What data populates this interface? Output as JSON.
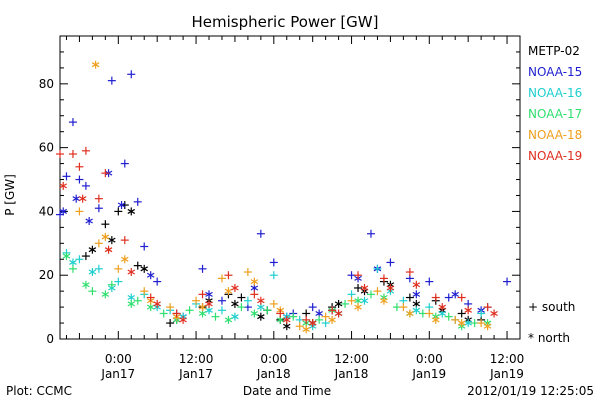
{
  "chart_data": {
    "type": "scatter",
    "title": "Hemispheric Power [GW]",
    "ylabel": "P [GW]",
    "xlabel": "Date and Time",
    "ylim": [
      0,
      95
    ],
    "xlim": [
      "2012-01-16 15:00",
      "2012-01-19 14:00"
    ],
    "yticks": [
      0,
      20,
      40,
      60,
      80
    ],
    "xticks": [
      {
        "t": "2012-01-17 00:00",
        "label": "0:00",
        "sub": "Jan17"
      },
      {
        "t": "2012-01-17 12:00",
        "label": "12:00",
        "sub": "Jan17"
      },
      {
        "t": "2012-01-18 00:00",
        "label": "0:00",
        "sub": "Jan18"
      },
      {
        "t": "2012-01-18 12:00",
        "label": "12:00",
        "sub": "Jan18"
      },
      {
        "t": "2012-01-19 00:00",
        "label": "0:00",
        "sub": "Jan19"
      },
      {
        "t": "2012-01-19 12:00",
        "label": "12:00",
        "sub": "Jan19"
      }
    ],
    "marker_legend": {
      "south": "+ south",
      "north": "* north"
    },
    "series": [
      {
        "name": "METP-02",
        "color": "#000000",
        "south": [
          [
            "2012-01-16 19:00",
            26
          ],
          [
            "2012-01-16 22:00",
            36
          ],
          [
            "2012-01-17 00:00",
            40
          ],
          [
            "2012-01-17 01:00",
            42
          ],
          [
            "2012-01-17 03:00",
            23
          ],
          [
            "2012-01-17 08:00",
            5
          ],
          [
            "2012-01-17 13:00",
            10
          ],
          [
            "2012-01-17 17:00",
            14
          ],
          [
            "2012-01-17 19:00",
            13
          ],
          [
            "2012-01-17 23:00",
            9
          ],
          [
            "2012-01-18 01:00",
            6
          ],
          [
            "2012-01-18 05:00",
            8
          ],
          [
            "2012-01-18 09:00",
            10
          ],
          [
            "2012-01-18 13:00",
            16
          ],
          [
            "2012-01-18 17:00",
            18
          ],
          [
            "2012-01-18 21:00",
            13
          ],
          [
            "2012-01-19 01:00",
            12
          ],
          [
            "2012-01-19 05:00",
            8
          ],
          [
            "2012-01-19 08:00",
            6
          ]
        ],
        "north": [
          [
            "2012-01-16 20:00",
            28
          ],
          [
            "2012-01-16 23:00",
            31
          ],
          [
            "2012-01-17 02:00",
            40
          ],
          [
            "2012-01-17 04:00",
            22
          ],
          [
            "2012-01-17 09:00",
            6
          ],
          [
            "2012-01-17 14:00",
            12
          ],
          [
            "2012-01-17 18:00",
            11
          ],
          [
            "2012-01-17 22:00",
            7
          ],
          [
            "2012-01-18 02:00",
            4
          ],
          [
            "2012-01-18 06:00",
            5
          ],
          [
            "2012-01-18 10:00",
            11
          ],
          [
            "2012-01-18 14:00",
            15
          ],
          [
            "2012-01-18 18:00",
            17
          ],
          [
            "2012-01-18 22:00",
            11
          ],
          [
            "2012-01-19 02:00",
            9
          ],
          [
            "2012-01-19 06:00",
            6
          ]
        ]
      },
      {
        "name": "NOAA-15",
        "color": "#1f1fcf",
        "south": [
          [
            "2012-01-16 15:00",
            39
          ],
          [
            "2012-01-16 16:00",
            51
          ],
          [
            "2012-01-16 17:00",
            68
          ],
          [
            "2012-01-16 18:00",
            50
          ],
          [
            "2012-01-16 19:00",
            48
          ],
          [
            "2012-01-16 21:00",
            41
          ],
          [
            "2012-01-16 23:00",
            81
          ],
          [
            "2012-01-17 01:00",
            55
          ],
          [
            "2012-01-17 02:00",
            83
          ],
          [
            "2012-01-17 03:00",
            43
          ],
          [
            "2012-01-17 04:00",
            29
          ],
          [
            "2012-01-17 06:00",
            18
          ],
          [
            "2012-01-17 09:00",
            8
          ],
          [
            "2012-01-17 13:00",
            22
          ],
          [
            "2012-01-17 16:00",
            12
          ],
          [
            "2012-01-17 20:00",
            10
          ],
          [
            "2012-01-17 22:00",
            33
          ],
          [
            "2012-01-18 00:00",
            24
          ],
          [
            "2012-01-18 03:00",
            8
          ],
          [
            "2012-01-18 06:00",
            10
          ],
          [
            "2012-01-18 09:00",
            9
          ],
          [
            "2012-01-18 12:00",
            20
          ],
          [
            "2012-01-18 15:00",
            33
          ],
          [
            "2012-01-18 18:00",
            24
          ],
          [
            "2012-01-18 21:00",
            19
          ],
          [
            "2012-01-19 00:00",
            18
          ],
          [
            "2012-01-19 03:00",
            13
          ],
          [
            "2012-01-19 06:00",
            11
          ],
          [
            "2012-01-19 09:00",
            10
          ],
          [
            "2012-01-19 12:00",
            18
          ]
        ],
        "north": [
          [
            "2012-01-16 15:30",
            40
          ],
          [
            "2012-01-16 17:30",
            44
          ],
          [
            "2012-01-16 19:30",
            37
          ],
          [
            "2012-01-16 22:30",
            52
          ],
          [
            "2012-01-17 00:30",
            42
          ],
          [
            "2012-01-17 05:00",
            20
          ],
          [
            "2012-01-17 10:00",
            7
          ],
          [
            "2012-01-17 14:00",
            14
          ],
          [
            "2012-01-17 21:00",
            16
          ],
          [
            "2012-01-18 02:00",
            7
          ],
          [
            "2012-01-18 07:00",
            8
          ],
          [
            "2012-01-18 13:00",
            19
          ],
          [
            "2012-01-18 16:00",
            22
          ],
          [
            "2012-01-18 22:00",
            14
          ],
          [
            "2012-01-19 04:00",
            14
          ],
          [
            "2012-01-19 08:00",
            9
          ]
        ]
      },
      {
        "name": "NOAA-16",
        "color": "#1fcfcf",
        "south": [
          [
            "2012-01-16 16:00",
            27
          ],
          [
            "2012-01-16 18:00",
            25
          ],
          [
            "2012-01-16 21:00",
            22
          ],
          [
            "2012-01-17 00:00",
            18
          ],
          [
            "2012-01-17 04:00",
            14
          ],
          [
            "2012-01-17 08:00",
            9
          ],
          [
            "2012-01-17 12:00",
            11
          ],
          [
            "2012-01-17 16:00",
            9
          ],
          [
            "2012-01-17 20:00",
            12
          ],
          [
            "2012-01-18 00:00",
            20
          ],
          [
            "2012-01-18 04:00",
            6
          ],
          [
            "2012-01-18 08:00",
            5
          ],
          [
            "2012-01-18 12:00",
            14
          ],
          [
            "2012-01-18 16:00",
            22
          ],
          [
            "2012-01-18 20:00",
            12
          ],
          [
            "2012-01-19 00:00",
            10
          ],
          [
            "2012-01-19 04:00",
            6
          ],
          [
            "2012-01-19 08:00",
            8
          ]
        ],
        "north": [
          [
            "2012-01-16 17:00",
            24
          ],
          [
            "2012-01-16 20:00",
            21
          ],
          [
            "2012-01-16 23:00",
            16
          ],
          [
            "2012-01-17 02:00",
            13
          ],
          [
            "2012-01-17 06:00",
            10
          ],
          [
            "2012-01-17 10:00",
            7
          ],
          [
            "2012-01-17 14:00",
            9
          ],
          [
            "2012-01-17 18:00",
            7
          ],
          [
            "2012-01-17 22:00",
            10
          ],
          [
            "2012-01-18 02:00",
            7
          ],
          [
            "2012-01-18 06:00",
            4
          ],
          [
            "2012-01-18 10:00",
            8
          ],
          [
            "2012-01-18 14:00",
            12
          ],
          [
            "2012-01-18 18:00",
            15
          ],
          [
            "2012-01-18 22:00",
            9
          ],
          [
            "2012-01-19 02:00",
            8
          ],
          [
            "2012-01-19 06:00",
            5
          ]
        ]
      },
      {
        "name": "NOAA-17",
        "color": "#2fdf6f",
        "south": [
          [
            "2012-01-16 17:00",
            22
          ],
          [
            "2012-01-16 20:00",
            15
          ],
          [
            "2012-01-16 23:00",
            17
          ],
          [
            "2012-01-17 03:00",
            12
          ],
          [
            "2012-01-17 07:00",
            8
          ],
          [
            "2012-01-17 11:00",
            9
          ],
          [
            "2012-01-17 15:00",
            7
          ],
          [
            "2012-01-17 19:00",
            10
          ],
          [
            "2012-01-17 23:00",
            9
          ],
          [
            "2012-01-18 03:00",
            7
          ],
          [
            "2012-01-18 07:00",
            6
          ],
          [
            "2012-01-18 11:00",
            11
          ],
          [
            "2012-01-18 15:00",
            14
          ],
          [
            "2012-01-18 19:00",
            10
          ],
          [
            "2012-01-18 23:00",
            8
          ],
          [
            "2012-01-19 03:00",
            7
          ],
          [
            "2012-01-19 07:00",
            5
          ]
        ],
        "north": [
          [
            "2012-01-16 16:00",
            26
          ],
          [
            "2012-01-16 19:00",
            17
          ],
          [
            "2012-01-16 22:00",
            14
          ],
          [
            "2012-01-17 02:00",
            11
          ],
          [
            "2012-01-17 05:00",
            10
          ],
          [
            "2012-01-17 09:00",
            6
          ],
          [
            "2012-01-17 13:00",
            8
          ],
          [
            "2012-01-17 17:00",
            6
          ],
          [
            "2012-01-17 21:00",
            8
          ],
          [
            "2012-01-18 01:00",
            6
          ],
          [
            "2012-01-18 05:00",
            5
          ],
          [
            "2012-01-18 09:00",
            9
          ],
          [
            "2012-01-18 13:00",
            12
          ],
          [
            "2012-01-18 17:00",
            13
          ],
          [
            "2012-01-18 21:00",
            8
          ],
          [
            "2012-01-19 01:00",
            7
          ],
          [
            "2012-01-19 05:00",
            4
          ],
          [
            "2012-01-19 09:00",
            5
          ]
        ]
      },
      {
        "name": "NOAA-18",
        "color": "#ef9f1f",
        "south": [
          [
            "2012-01-16 18:00",
            40
          ],
          [
            "2012-01-16 21:00",
            30
          ],
          [
            "2012-01-17 00:00",
            22
          ],
          [
            "2012-01-17 04:00",
            15
          ],
          [
            "2012-01-17 08:00",
            10
          ],
          [
            "2012-01-17 12:00",
            12
          ],
          [
            "2012-01-17 16:00",
            19
          ],
          [
            "2012-01-17 20:00",
            21
          ],
          [
            "2012-01-18 00:00",
            11
          ],
          [
            "2012-01-18 04:00",
            4
          ],
          [
            "2012-01-18 08:00",
            7
          ],
          [
            "2012-01-18 12:00",
            12
          ],
          [
            "2012-01-18 16:00",
            15
          ],
          [
            "2012-01-18 20:00",
            10
          ],
          [
            "2012-01-19 00:00",
            8
          ],
          [
            "2012-01-19 04:00",
            6
          ],
          [
            "2012-01-19 08:00",
            5
          ]
        ],
        "north": [
          [
            "2012-01-16 20:30",
            86
          ],
          [
            "2012-01-16 22:00",
            32
          ],
          [
            "2012-01-17 01:00",
            25
          ],
          [
            "2012-01-17 05:00",
            12
          ],
          [
            "2012-01-17 09:00",
            7
          ],
          [
            "2012-01-17 13:00",
            10
          ],
          [
            "2012-01-17 17:00",
            15
          ],
          [
            "2012-01-17 21:00",
            18
          ],
          [
            "2012-01-18 01:00",
            9
          ],
          [
            "2012-01-18 05:00",
            3
          ],
          [
            "2012-01-18 09:00",
            6
          ],
          [
            "2012-01-18 13:00",
            10
          ],
          [
            "2012-01-18 17:00",
            12
          ],
          [
            "2012-01-18 21:00",
            8
          ],
          [
            "2012-01-19 01:00",
            6
          ],
          [
            "2012-01-19 05:00",
            5
          ],
          [
            "2012-01-19 09:00",
            4
          ]
        ]
      },
      {
        "name": "NOAA-19",
        "color": "#df2f1f",
        "south": [
          [
            "2012-01-16 15:00",
            58
          ],
          [
            "2012-01-16 17:00",
            58
          ],
          [
            "2012-01-16 18:00",
            54
          ],
          [
            "2012-01-16 19:00",
            59
          ],
          [
            "2012-01-16 21:00",
            44
          ],
          [
            "2012-01-16 22:00",
            52
          ],
          [
            "2012-01-17 01:00",
            31
          ],
          [
            "2012-01-17 05:00",
            13
          ],
          [
            "2012-01-17 09:00",
            8
          ],
          [
            "2012-01-17 13:00",
            14
          ],
          [
            "2012-01-17 17:00",
            20
          ],
          [
            "2012-01-17 21:00",
            14
          ],
          [
            "2012-01-18 01:00",
            8
          ],
          [
            "2012-01-18 05:00",
            6
          ],
          [
            "2012-01-18 09:00",
            9
          ],
          [
            "2012-01-18 13:00",
            20
          ],
          [
            "2012-01-18 17:00",
            19
          ],
          [
            "2012-01-18 21:00",
            21
          ],
          [
            "2012-01-19 01:00",
            13
          ],
          [
            "2012-01-19 05:00",
            13
          ],
          [
            "2012-01-19 09:00",
            10
          ]
        ],
        "north": [
          [
            "2012-01-16 15:30",
            48
          ],
          [
            "2012-01-16 18:30",
            44
          ],
          [
            "2012-01-16 22:30",
            28
          ],
          [
            "2012-01-17 02:00",
            21
          ],
          [
            "2012-01-17 06:00",
            11
          ],
          [
            "2012-01-17 10:00",
            6
          ],
          [
            "2012-01-17 14:00",
            11
          ],
          [
            "2012-01-17 18:00",
            16
          ],
          [
            "2012-01-17 22:00",
            12
          ],
          [
            "2012-01-18 02:00",
            6
          ],
          [
            "2012-01-18 06:00",
            5
          ],
          [
            "2012-01-18 10:00",
            8
          ],
          [
            "2012-01-18 14:00",
            16
          ],
          [
            "2012-01-18 18:00",
            16
          ],
          [
            "2012-01-18 22:00",
            17
          ],
          [
            "2012-01-19 02:00",
            10
          ],
          [
            "2012-01-19 06:00",
            9
          ],
          [
            "2012-01-19 10:00",
            8
          ]
        ]
      }
    ]
  },
  "footer": {
    "left": "Plot: CCMC",
    "center": "Date and Time",
    "right": "2012/01/19 12:25:05"
  }
}
